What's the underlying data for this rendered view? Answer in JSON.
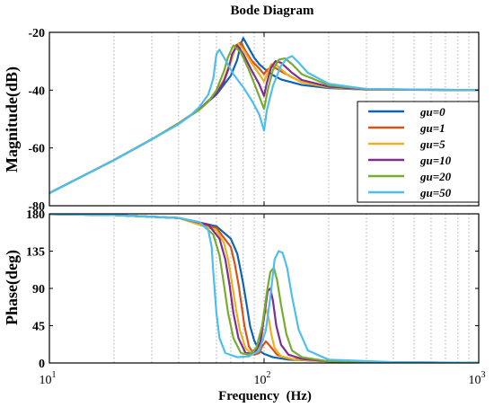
{
  "chart_data": [
    {
      "type": "line",
      "title": "Bode Diagram",
      "ylabel": "Magnitude(dB)",
      "xlabel": "",
      "xscale": "log",
      "xlim": [
        10,
        1000
      ],
      "ylim": [
        -80,
        -20
      ],
      "yticks": [
        -80,
        -60,
        -40,
        -20
      ],
      "grid": "x-minor-dotted",
      "legend": "right-middle",
      "series": [
        {
          "name": "gu=0",
          "color": "#0e63b5",
          "x": [
            10,
            20,
            30,
            40,
            50,
            60,
            70,
            75,
            78,
            80,
            85,
            90,
            95,
            100,
            110,
            120,
            150,
            200,
            300,
            1000
          ],
          "y": [
            -75.6,
            -64.2,
            -57.0,
            -51.5,
            -46.6,
            -41.5,
            -35.0,
            -29.5,
            -24.0,
            -22.0,
            -25.5,
            -28.8,
            -31.0,
            -32.5,
            -34.8,
            -36.3,
            -38.2,
            -39.3,
            -39.8,
            -40.0
          ]
        },
        {
          "name": "gu=1",
          "color": "#d95319",
          "x": [
            10,
            20,
            30,
            40,
            50,
            60,
            65,
            70,
            74,
            78,
            82,
            88,
            95,
            100,
            103,
            110,
            120,
            150,
            200,
            300,
            1000
          ],
          "y": [
            -75.6,
            -64.2,
            -57.0,
            -51.5,
            -46.6,
            -41.0,
            -36.5,
            -30.0,
            -24.5,
            -23.5,
            -26.5,
            -30.0,
            -32.5,
            -34.5,
            -33.0,
            -31.8,
            -33.5,
            -37.3,
            -39.0,
            -39.8,
            -40.0
          ]
        },
        {
          "name": "gu=5",
          "color": "#edb120",
          "x": [
            10,
            20,
            30,
            40,
            50,
            60,
            65,
            70,
            73,
            76,
            80,
            88,
            95,
            100,
            104,
            108,
            115,
            130,
            150,
            200,
            300,
            1000
          ],
          "y": [
            -75.6,
            -64.2,
            -57.0,
            -51.5,
            -46.6,
            -41.0,
            -36.8,
            -30.5,
            -26.0,
            -24.0,
            -26.0,
            -31.0,
            -34.5,
            -37.0,
            -34.0,
            -31.0,
            -31.5,
            -35.0,
            -37.3,
            -39.0,
            -39.8,
            -40.0
          ]
        },
        {
          "name": "gu=10",
          "color": "#7e2f8e",
          "x": [
            10,
            20,
            30,
            40,
            50,
            60,
            65,
            68,
            71,
            75,
            80,
            88,
            95,
            100,
            103,
            108,
            113,
            120,
            135,
            150,
            200,
            300,
            1000
          ],
          "y": [
            -75.6,
            -64.2,
            -57.0,
            -51.5,
            -46.6,
            -41.2,
            -37.0,
            -33.0,
            -27.5,
            -24.5,
            -27.5,
            -33.5,
            -38.0,
            -42.0,
            -37.5,
            -32.0,
            -30.0,
            -30.5,
            -34.0,
            -36.5,
            -38.8,
            -39.7,
            -40.0
          ]
        },
        {
          "name": "gu=20",
          "color": "#77ac30",
          "x": [
            10,
            20,
            30,
            40,
            50,
            55,
            60,
            65,
            68,
            72,
            78,
            85,
            92,
            100,
            104,
            110,
            117,
            125,
            135,
            150,
            200,
            300,
            1000
          ],
          "y": [
            -75.6,
            -64.2,
            -57.0,
            -51.5,
            -46.8,
            -44.0,
            -40.0,
            -33.5,
            -28.5,
            -24.5,
            -27.0,
            -33.0,
            -39.5,
            -46.5,
            -40.0,
            -33.0,
            -29.5,
            -29.0,
            -31.0,
            -34.5,
            -38.3,
            -39.6,
            -40.0
          ]
        },
        {
          "name": "gu=50",
          "color": "#4dbeee",
          "x": [
            10,
            20,
            30,
            40,
            45,
            50,
            55,
            58,
            60,
            62,
            66,
            72,
            80,
            88,
            95,
            100,
            103,
            110,
            120,
            128,
            135,
            145,
            160,
            200,
            300,
            1000
          ],
          "y": [
            -75.6,
            -64.2,
            -57.0,
            -51.8,
            -49.0,
            -45.8,
            -41.5,
            -36.0,
            -27.5,
            -26.0,
            -29.5,
            -34.5,
            -39.0,
            -43.8,
            -48.5,
            -54.0,
            -47.0,
            -38.5,
            -31.5,
            -29.0,
            -28.2,
            -30.5,
            -34.0,
            -37.8,
            -39.6,
            -40.0
          ]
        }
      ]
    },
    {
      "type": "line",
      "title": "",
      "ylabel": "Phase(deg)",
      "xlabel": "Frequency  (Hz)",
      "xscale": "log",
      "xlim": [
        10,
        1000
      ],
      "ylim": [
        0,
        180
      ],
      "yticks": [
        0,
        45,
        90,
        135,
        180
      ],
      "xtick_labels": [
        {
          "base": "10",
          "exp": "1"
        },
        {
          "base": "10",
          "exp": "2"
        },
        {
          "base": "10",
          "exp": "3"
        }
      ],
      "grid": "x-minor-dotted",
      "series": [
        {
          "name": "gu=0",
          "color": "#0e63b5",
          "x": [
            10,
            20,
            40,
            60,
            70,
            75,
            78,
            80,
            83,
            86,
            90,
            95,
            100,
            110,
            130,
            200,
            400,
            1000
          ],
          "y": [
            179.5,
            178.5,
            175,
            165,
            150,
            132,
            110,
            95,
            70,
            45,
            27,
            15,
            11,
            7,
            4,
            2,
            0.8,
            0.2
          ]
        },
        {
          "name": "gu=1",
          "color": "#d95319",
          "x": [
            10,
            20,
            40,
            60,
            70,
            73,
            76,
            78,
            81,
            85,
            90,
            95,
            98,
            102,
            107,
            115,
            130,
            200,
            400,
            1000
          ],
          "y": [
            179.5,
            178.5,
            175,
            163,
            140,
            120,
            95,
            75,
            45,
            20,
            10,
            12,
            20,
            26,
            20,
            10,
            5,
            2,
            0.8,
            0.2
          ]
        },
        {
          "name": "gu=5",
          "color": "#edb120",
          "x": [
            10,
            20,
            40,
            60,
            65,
            68,
            71,
            74,
            77,
            82,
            88,
            94,
            98,
            100,
            102,
            105,
            108,
            112,
            120,
            140,
            200,
            400,
            1000
          ],
          "y": [
            179.5,
            178.5,
            175,
            160,
            145,
            125,
            95,
            65,
            40,
            18,
            10,
            14,
            35,
            58,
            65,
            55,
            35,
            18,
            8,
            4,
            2,
            0.8,
            0.2
          ]
        },
        {
          "name": "gu=10",
          "color": "#7e2f8e",
          "x": [
            10,
            20,
            40,
            55,
            62,
            66,
            69,
            72,
            76,
            82,
            90,
            96,
            100,
            104,
            107,
            110,
            114,
            120,
            130,
            150,
            200,
            400,
            1000
          ],
          "y": [
            179.5,
            178.5,
            175,
            167,
            150,
            125,
            95,
            60,
            30,
            12,
            11,
            25,
            55,
            87,
            90,
            75,
            45,
            22,
            10,
            5,
            2,
            0.8,
            0.2
          ]
        },
        {
          "name": "gu=20",
          "color": "#77ac30",
          "x": [
            10,
            20,
            40,
            50,
            58,
            62,
            65,
            68,
            72,
            78,
            85,
            92,
            98,
            103,
            107,
            111,
            115,
            120,
            127,
            135,
            150,
            200,
            400,
            1000
          ],
          "y": [
            179.5,
            178.5,
            175,
            170,
            155,
            130,
            95,
            60,
            30,
            12,
            10,
            18,
            45,
            85,
            110,
            115,
            100,
            70,
            35,
            15,
            7,
            2,
            0.8,
            0.2
          ]
        },
        {
          "name": "gu=50",
          "color": "#4dbeee",
          "x": [
            10,
            20,
            40,
            50,
            55,
            57,
            58,
            60,
            62,
            66,
            75,
            85,
            95,
            102,
            107,
            112,
            117,
            122,
            128,
            135,
            145,
            160,
            200,
            400,
            1000
          ],
          "y": [
            179.5,
            178.5,
            175,
            170,
            160,
            140,
            110,
            60,
            30,
            12,
            7,
            8,
            15,
            40,
            80,
            125,
            135,
            133,
            115,
            80,
            40,
            15,
            4,
            1,
            0.2
          ]
        }
      ]
    }
  ]
}
